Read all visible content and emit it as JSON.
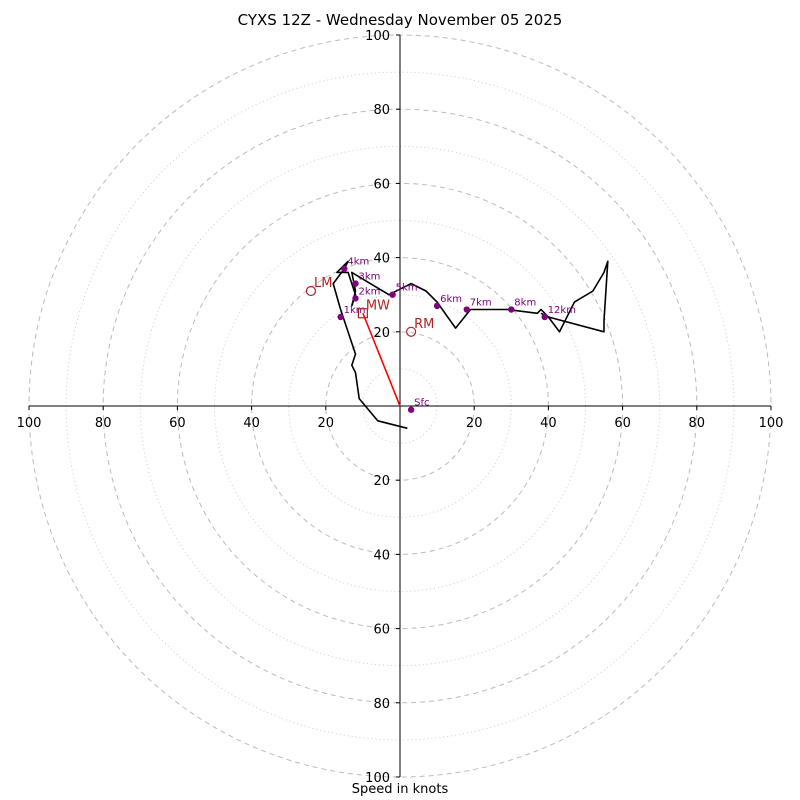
{
  "chart_data": {
    "type": "line",
    "title": "CYXS 12Z - Wednesday November 05 2025",
    "xlabel": "Speed in knots",
    "ylabel": "",
    "xlim": [
      -100,
      100
    ],
    "ylim": [
      -100,
      100
    ],
    "rings_major": [
      20,
      40,
      60,
      80,
      100
    ],
    "rings_minor": [
      10,
      30,
      50,
      70,
      90
    ],
    "x_tick_labels": [
      "100",
      "80",
      "60",
      "40",
      "20",
      "20",
      "40",
      "60",
      "80",
      "100"
    ],
    "y_tick_labels": [
      "100",
      "80",
      "60",
      "40",
      "20",
      "20",
      "40",
      "60",
      "80",
      "100"
    ],
    "grid": true,
    "series": [
      {
        "color": "#000000",
        "points": [
          [
            2,
            -6
          ],
          [
            -6,
            -4
          ],
          [
            -11,
            2
          ],
          [
            -12,
            9
          ],
          [
            -13,
            11
          ],
          [
            -12,
            14
          ],
          [
            -16,
            26
          ],
          [
            -18,
            33
          ],
          [
            -15,
            37
          ],
          [
            -14,
            39
          ],
          [
            -16,
            37
          ],
          [
            -17,
            36
          ],
          [
            -14,
            36
          ],
          [
            -13,
            33
          ],
          [
            -12,
            30
          ],
          [
            -13,
            27
          ],
          [
            -12,
            31
          ],
          [
            -13,
            36
          ],
          [
            -8,
            33
          ],
          [
            -3,
            30
          ],
          [
            1,
            32
          ],
          [
            3,
            33
          ],
          [
            7,
            31
          ],
          [
            10,
            28
          ],
          [
            15,
            21
          ],
          [
            19,
            26
          ],
          [
            22,
            26
          ],
          [
            29,
            26
          ],
          [
            37,
            25
          ],
          [
            38,
            26
          ],
          [
            40,
            24
          ],
          [
            43,
            20
          ],
          [
            47,
            28
          ],
          [
            52,
            31
          ],
          [
            55,
            36
          ],
          [
            56,
            39
          ],
          [
            55,
            23
          ],
          [
            55,
            20
          ],
          [
            40,
            24
          ],
          [
            38,
            25
          ]
        ]
      }
    ],
    "heights": [
      {
        "label": "Sfc",
        "x": 3,
        "y": -1
      },
      {
        "label": "1km",
        "x": -16,
        "y": 24
      },
      {
        "label": "2km",
        "x": -12,
        "y": 29
      },
      {
        "label": "3km",
        "x": -12,
        "y": 33
      },
      {
        "label": "4km",
        "x": -15,
        "y": 37
      },
      {
        "label": "5km",
        "x": -2,
        "y": 30
      },
      {
        "label": "6km",
        "x": 10,
        "y": 27
      },
      {
        "label": "7km",
        "x": 18,
        "y": 26
      },
      {
        "label": "8km",
        "x": 30,
        "y": 26
      },
      {
        "label": "12km",
        "x": 39,
        "y": 24
      }
    ],
    "motion_markers": [
      {
        "label": "LM",
        "x": -24,
        "y": 31,
        "marker": "circle"
      },
      {
        "label": "MW",
        "x": -10,
        "y": 25,
        "marker": "square"
      },
      {
        "label": "RM",
        "x": 3,
        "y": 20,
        "marker": "circle"
      }
    ],
    "mean_wind_vector": {
      "color": "#ff0000",
      "x": -10,
      "y": 25
    },
    "colors": {
      "hodograph": "#000000",
      "height_markers": "#800080",
      "motion_markers": "#b22222",
      "mean_wind": "#ff0000",
      "grid": "#bbbbbb"
    }
  }
}
